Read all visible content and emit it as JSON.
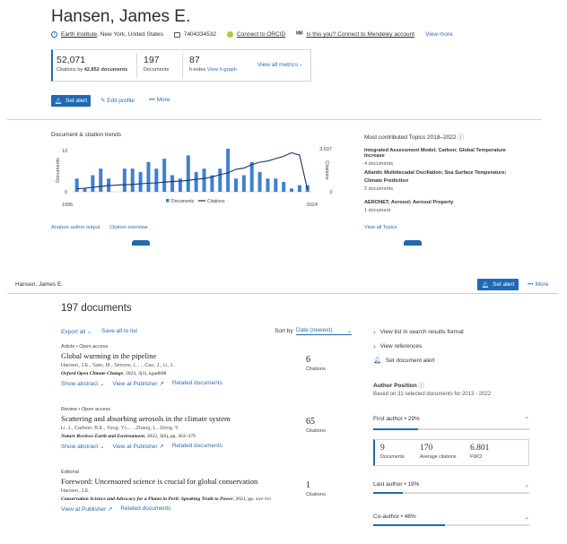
{
  "author": {
    "name": "Hansen, James E.",
    "affiliation": "Earth Institute",
    "location": ", New York, United States",
    "author_id": "7404334532",
    "orcid_link": "Connect to ORCID",
    "mendeley_link": "Is this you? Connect to Mendeley account",
    "view_more": "View more"
  },
  "metrics": {
    "citations_value": "52,071",
    "citations_label_prefix": "Citations by ",
    "citations_label_docs": "42,852 documents",
    "documents_value": "197",
    "documents_label": "Documents",
    "h_index_value": "87",
    "h_index_label": "h-index",
    "h_graph_link": "View h-graph",
    "view_all": "View all metrics"
  },
  "actions": {
    "set_alert": "Set alert",
    "edit_profile": "Edit profile",
    "more": "More"
  },
  "trends": {
    "title": "Document & citation trends",
    "analyze_link": "Analyze author output",
    "citation_overview_link": "Citation overview"
  },
  "chart_data": {
    "type": "bar",
    "x_start_label": "1995",
    "x_end_label": "2024",
    "left_axis_top": "13",
    "left_axis_bottom": "0",
    "right_axis_top": "3,637",
    "right_axis_bottom": "0",
    "ylabel_left": "Documents",
    "ylabel_right": "Citations",
    "series": [
      {
        "name": "Documents",
        "values": [
          4,
          1,
          5,
          7,
          4,
          0,
          7,
          7,
          6,
          9,
          7,
          10,
          5,
          4,
          11,
          6,
          7,
          5,
          7,
          13,
          4,
          5,
          9,
          6,
          4,
          4,
          3,
          1,
          2,
          2
        ]
      },
      {
        "name": "Citations",
        "values": [
          250,
          300,
          380,
          450,
          520,
          560,
          600,
          620,
          680,
          720,
          760,
          820,
          860,
          900,
          960,
          1050,
          1120,
          1250,
          1450,
          1600,
          1900,
          2000,
          2300,
          2500,
          2600,
          2800,
          3000,
          3300,
          3100,
          200
        ]
      }
    ],
    "ylim_left": [
      0,
      13
    ],
    "ylim_right": [
      0,
      3637
    ],
    "legend": "bottom-center",
    "colors": {
      "bars": "#3f7fd1",
      "line": "#1b2f5e"
    }
  },
  "topics": {
    "title": "Most contributed Topics 2018–2022",
    "items": [
      {
        "name": "Integrated Assessment Model; Carbon; Global Temperature Increase",
        "count": "4 documents"
      },
      {
        "name": "Atlantic Multidecadal Oscillation; Sea Surface Temperature; Climate Prediction",
        "count": "2 documents"
      },
      {
        "name": "AERONET; Aerosol; Aerosol Property",
        "count": "1 document"
      }
    ],
    "view_all": "View all Topics"
  },
  "sticky": {
    "name": "Hansen, James E.",
    "set_alert": "Set alert",
    "more": "More"
  },
  "documents": {
    "heading": "197 documents",
    "export_all": "Export all",
    "save_all": "Save all to list",
    "sort_label": "Sort by",
    "sort_value": "Date (newest)",
    "show_abstract": "Show abstract",
    "view_publisher": "View at Publisher",
    "related": "Related documents",
    "citations_label": "Citations",
    "items": [
      {
        "type": "Article  •  Open access",
        "title": "Global warming in the pipeline",
        "authors": "Hansen, J.E., Sato, M., Simons, L., ...Cao, J., Li, J.",
        "source_journal": "Oxford Open Climate Change",
        "source_rest": ", 2023, 3(1), kgad008",
        "citations": "6"
      },
      {
        "type": "Review  •  Open access",
        "title": "Scattering and absorbing aerosols in the climate system",
        "authors": "Li, J., Carlson, B.E., Yung, Y.L., ...Zhang, L., Dong, Y.",
        "source_journal": "Nature Reviews Earth and Environment",
        "source_rest": ", 2022, 3(6), pp. 363–379",
        "citations": "65"
      },
      {
        "type": "Editorial",
        "title": "Foreword: Uncensored science is crucial for global conservation",
        "authors": "Hansen, J.E.",
        "source_journal": "Conservation Science and Advocacy for a Planet in Peril: Speaking Truth to Power",
        "source_rest": ", 2021, pp. xxv–lvi",
        "citations": "1"
      }
    ]
  },
  "side": {
    "view_list": "View list in search results format",
    "view_refs": "View references",
    "set_doc_alert": "Set document alert",
    "position_title": "Author Position",
    "based_on": "Based on 31 selected documents for 2013 - 2022",
    "first_author": "First author  •  29%",
    "first_docs": "9",
    "first_docs_lbl": "Documents",
    "first_cites": "170",
    "first_cites_lbl": "Average citations",
    "first_fwci": "6.801",
    "first_fwci_lbl": "FWCI",
    "last_author": "Last author  •  19%",
    "co_author": "Co-author  •  46%"
  }
}
